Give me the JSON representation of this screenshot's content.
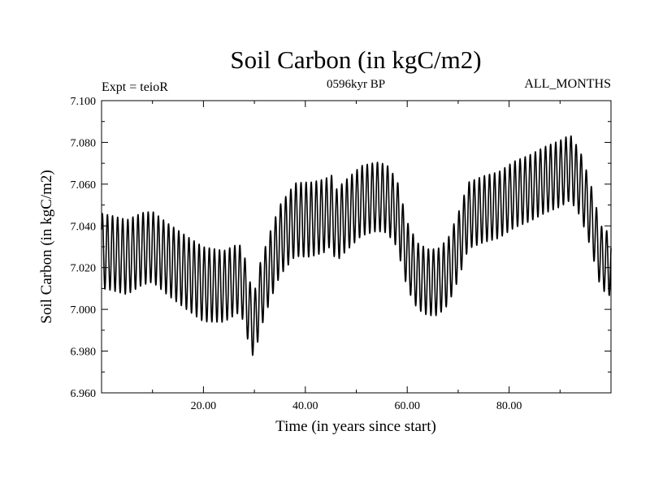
{
  "chart_data": {
    "type": "line",
    "title": "Soil Carbon (in kgC/m2)",
    "subtitle": "0596kyr BP",
    "annotation_left": "Expt = teioR",
    "annotation_right": "ALL_MONTHS",
    "xlabel": "Time (in years since start)",
    "ylabel": "Soil Carbon (in kgC/m2)",
    "xlim": [
      0,
      100
    ],
    "ylim": [
      6.96,
      7.1
    ],
    "x_ticks": [
      20,
      40,
      60,
      80
    ],
    "x_tick_labels": [
      "20.00",
      "40.00",
      "60.00",
      "80.00"
    ],
    "y_ticks": [
      6.96,
      6.98,
      7.0,
      7.02,
      7.04,
      7.06,
      7.08,
      7.1
    ],
    "y_tick_labels": [
      "6.960",
      "6.980",
      "7.000",
      "7.020",
      "7.040",
      "7.060",
      "7.080",
      "7.100"
    ],
    "grid": false,
    "series": [
      {
        "name": "Soil Carbon",
        "color": "#000000",
        "oscillation_period_years": 1,
        "annual_mean": {
          "x": [
            0,
            2,
            5,
            8,
            10,
            13,
            17,
            20,
            24,
            27,
            28,
            29,
            30,
            31,
            33,
            35,
            38,
            41,
            44,
            45,
            46,
            48,
            51,
            54,
            56,
            58,
            60,
            62,
            64,
            66,
            68,
            70,
            72,
            75,
            78,
            81,
            84,
            87,
            90,
            92,
            94,
            96,
            98,
            100
          ],
          "y": [
            7.028,
            7.027,
            7.025,
            7.029,
            7.03,
            7.024,
            7.017,
            7.012,
            7.011,
            7.015,
            7.01,
            6.998,
            6.992,
            7.005,
            7.02,
            7.033,
            7.043,
            7.043,
            7.045,
            7.048,
            7.04,
            7.045,
            7.052,
            7.054,
            7.053,
            7.046,
            7.026,
            7.016,
            7.013,
            7.013,
            7.018,
            7.03,
            7.045,
            7.048,
            7.05,
            7.055,
            7.058,
            7.062,
            7.065,
            7.068,
            7.06,
            7.045,
            7.025,
            7.021
          ]
        },
        "seasonal_half_amplitude": {
          "x": [
            0,
            5,
            10,
            20,
            30,
            40,
            50,
            60,
            70,
            80,
            90,
            100
          ],
          "y": [
            0.018,
            0.018,
            0.017,
            0.018,
            0.016,
            0.018,
            0.017,
            0.016,
            0.016,
            0.016,
            0.016,
            0.015
          ]
        }
      }
    ]
  }
}
